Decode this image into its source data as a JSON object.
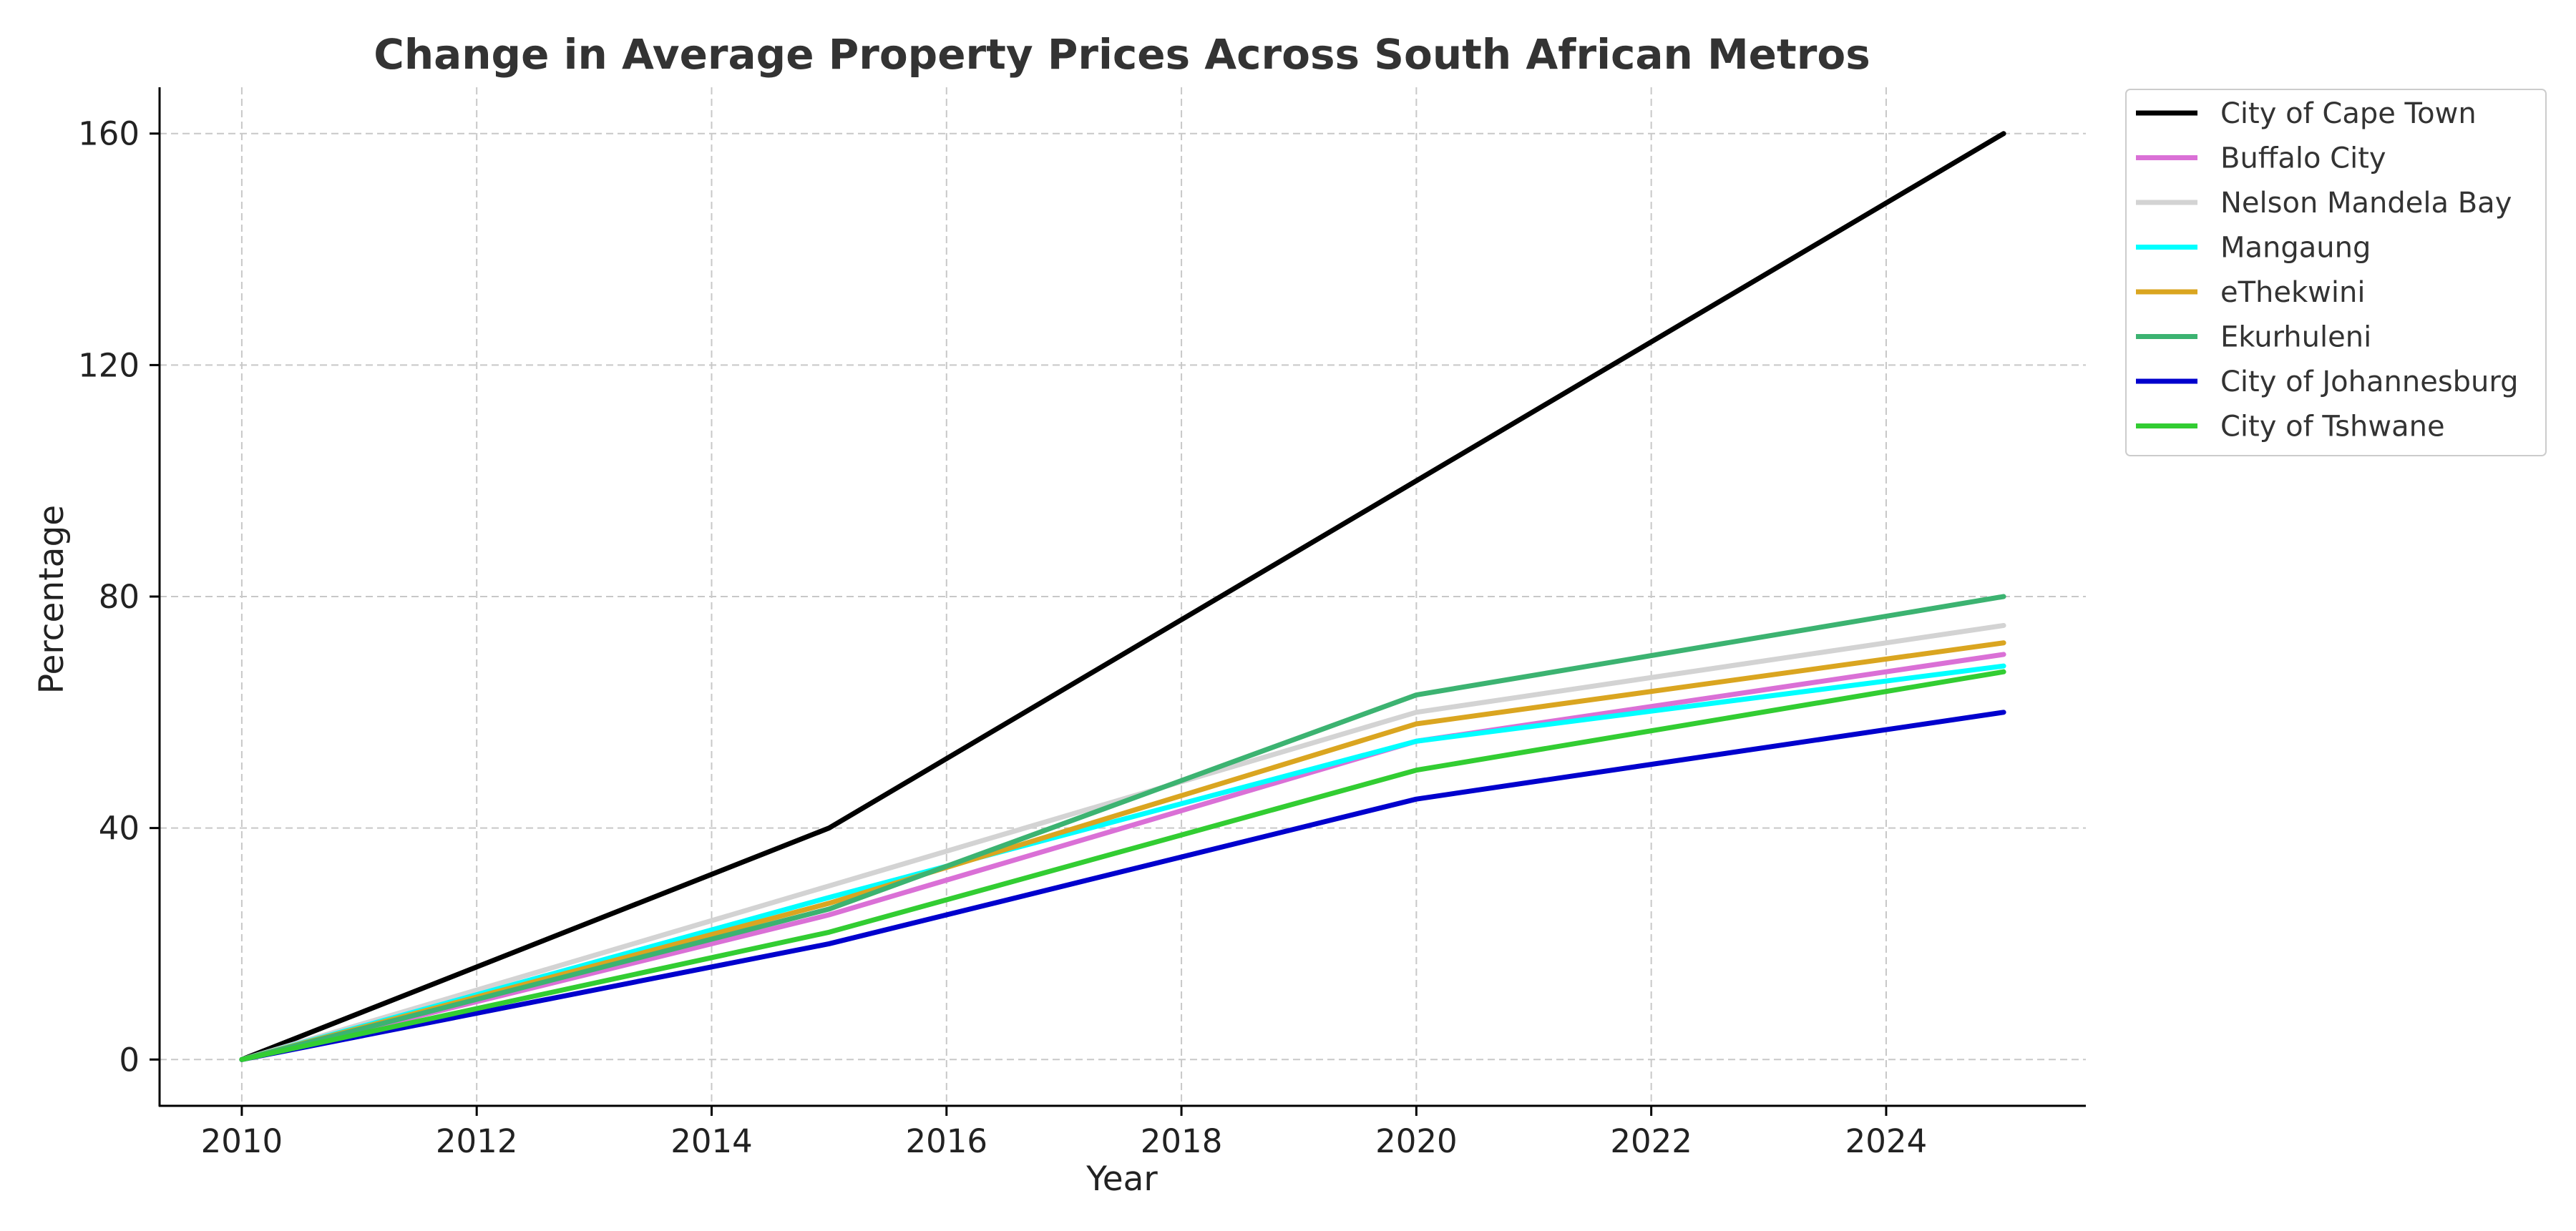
{
  "chart_data": {
    "type": "line",
    "title": "Change in Average Property Prices Across South African Metros",
    "xlabel": "Year",
    "ylabel": "Percentage",
    "x": [
      2010,
      2015,
      2020,
      2025
    ],
    "xlim": [
      2009.3,
      2025.7
    ],
    "ylim": [
      -8,
      168
    ],
    "xticks": [
      2010,
      2012,
      2014,
      2016,
      2018,
      2020,
      2022,
      2024
    ],
    "yticks": [
      0,
      40,
      80,
      120,
      160
    ],
    "grid": true,
    "legend_position": "outside-top-right",
    "series": [
      {
        "name": "City of Cape Town",
        "color": "#000000",
        "values": [
          0,
          40,
          100,
          160
        ]
      },
      {
        "name": "Buffalo City",
        "color": "#da70d6",
        "values": [
          0,
          25,
          55,
          70
        ]
      },
      {
        "name": "Nelson Mandela Bay",
        "color": "#d3d3d3",
        "values": [
          0,
          30,
          60,
          75
        ]
      },
      {
        "name": "Mangaung",
        "color": "#00ffff",
        "values": [
          0,
          28,
          55,
          68
        ]
      },
      {
        "name": "eThekwini",
        "color": "#daa520",
        "values": [
          0,
          27,
          58,
          72
        ]
      },
      {
        "name": "Ekurhuleni",
        "color": "#3cb371",
        "values": [
          0,
          26,
          63,
          80
        ]
      },
      {
        "name": "City of Johannesburg",
        "color": "#0000cd",
        "values": [
          0,
          20,
          45,
          60
        ]
      },
      {
        "name": "City of Tshwane",
        "color": "#32cd32",
        "values": [
          0,
          22,
          50,
          67
        ]
      }
    ]
  }
}
